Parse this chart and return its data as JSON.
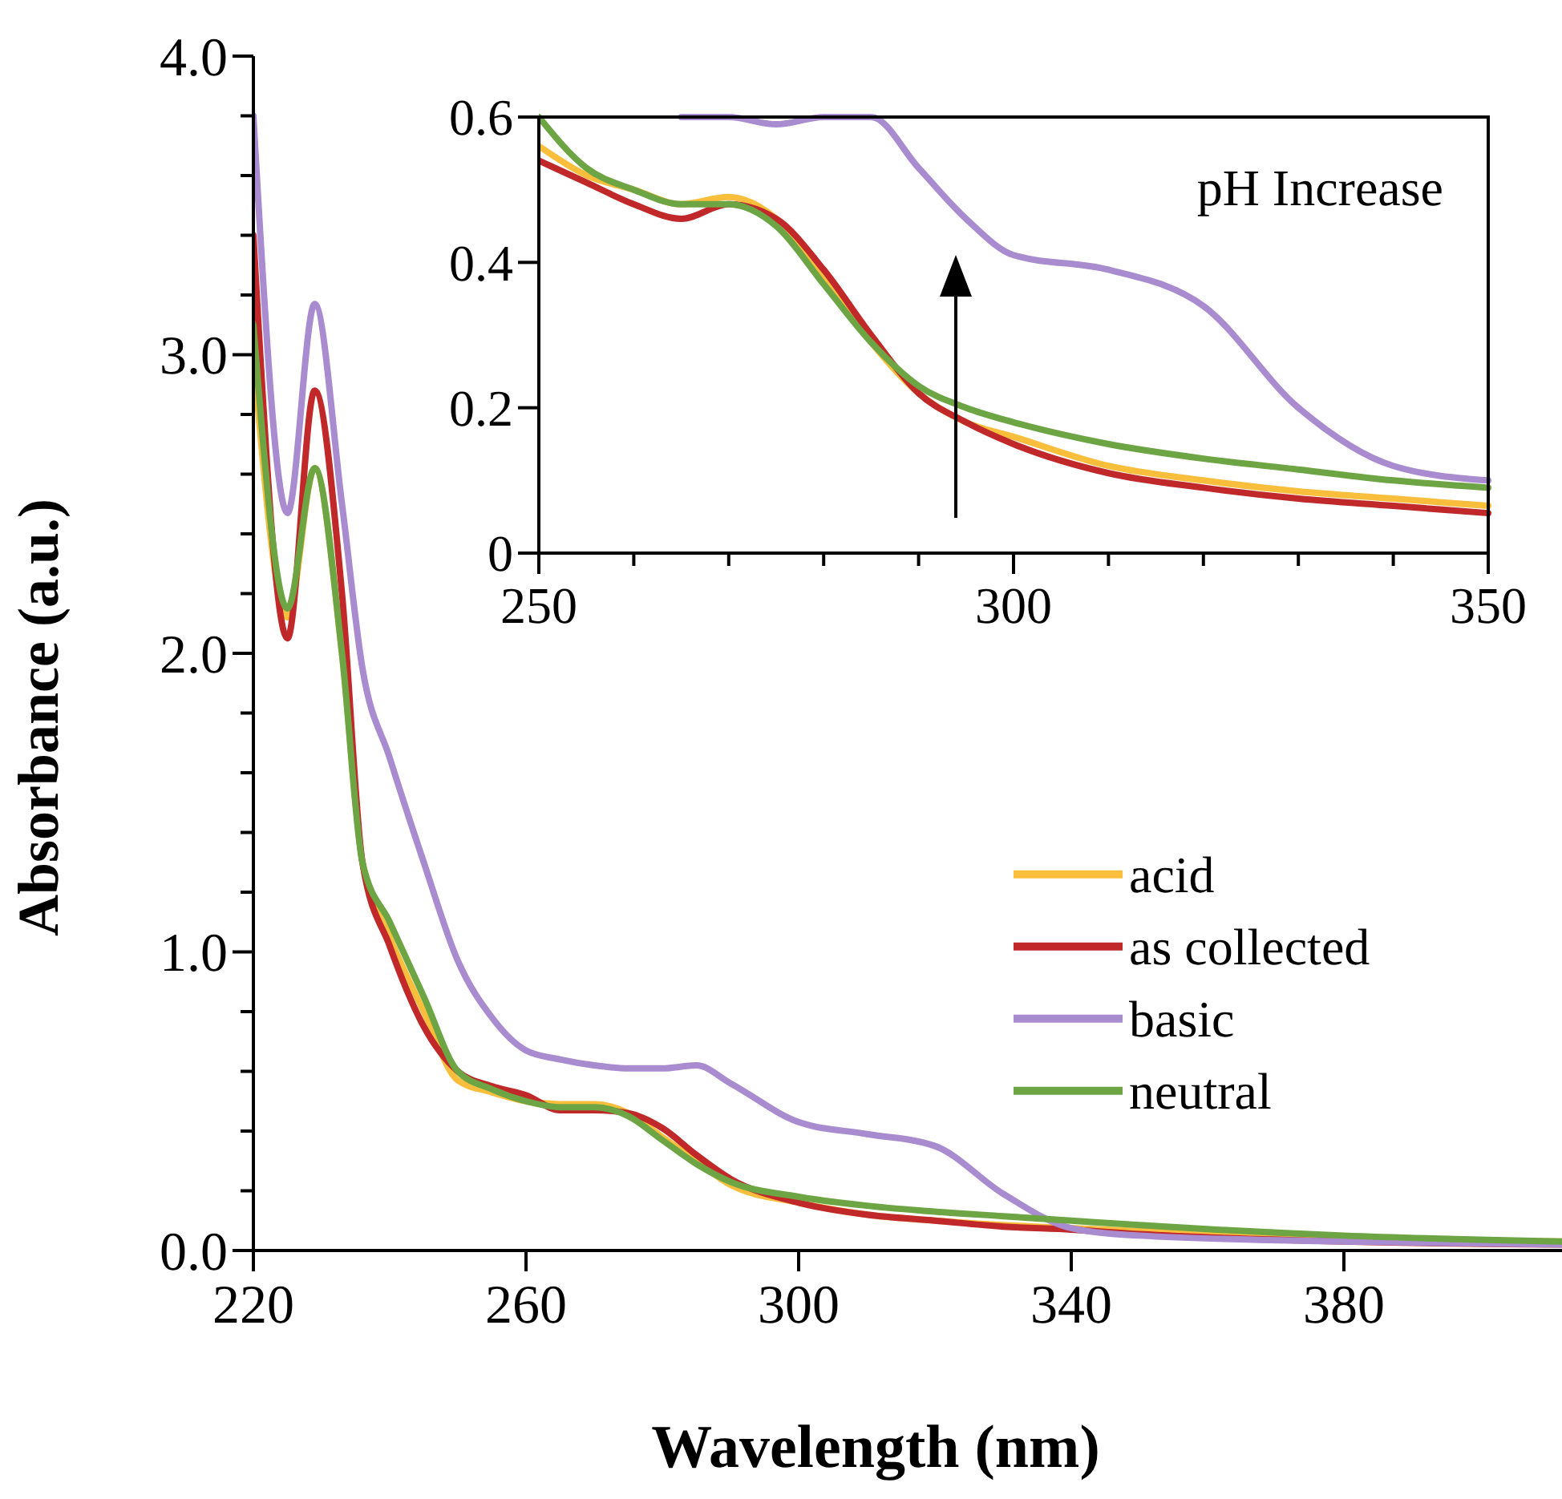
{
  "chart_data": [
    {
      "type": "line",
      "xlabel": "Wavelength (nm)",
      "ylabel": "Absorbance (a.u.)",
      "legend": "right",
      "grid": false,
      "marker": "none",
      "line_style": "solid",
      "x": [
        220,
        225,
        229,
        233,
        236,
        240,
        245,
        250,
        255,
        260,
        265,
        270,
        275,
        280,
        285,
        290,
        300,
        310,
        320,
        330,
        340,
        350,
        380,
        412
      ],
      "xlim": [
        220,
        412
      ],
      "xticks": [
        220,
        260,
        300,
        340,
        380
      ],
      "ylim": [
        0,
        4
      ],
      "yticks": [
        {
          "value": 0,
          "label": "0.0"
        },
        {
          "value": 0.2,
          "label": null
        },
        {
          "value": 0.4,
          "label": null
        },
        {
          "value": 0.6,
          "label": null
        },
        {
          "value": 0.8,
          "label": null
        },
        {
          "value": 1,
          "label": "1.0"
        },
        {
          "value": 1.2,
          "label": null
        },
        {
          "value": 1.4,
          "label": null
        },
        {
          "value": 1.6,
          "label": null
        },
        {
          "value": 1.8,
          "label": null
        },
        {
          "value": 2,
          "label": "2.0"
        },
        {
          "value": 2.2,
          "label": null
        },
        {
          "value": 2.4,
          "label": null
        },
        {
          "value": 2.6,
          "label": null
        },
        {
          "value": 2.8,
          "label": null
        },
        {
          "value": 3,
          "label": "3.0"
        },
        {
          "value": 3.2,
          "label": null
        },
        {
          "value": 3.4,
          "label": null
        },
        {
          "value": 3.6,
          "label": null
        },
        {
          "value": 3.8,
          "label": null
        },
        {
          "value": 4,
          "label": "4.0"
        }
      ],
      "series": [
        {
          "name": "acid",
          "color": "#f9be3c",
          "values": [
            3.0,
            2.12,
            2.62,
            2.0,
            1.3,
            1.05,
            0.8,
            0.57,
            0.53,
            0.5,
            0.49,
            0.49,
            0.46,
            0.38,
            0.3,
            0.22,
            0.16,
            0.12,
            0.1,
            0.085,
            0.075,
            0.065,
            0.04,
            0.03
          ]
        },
        {
          "name": "as collected",
          "color": "#c0282a",
          "values": [
            3.4,
            2.05,
            2.88,
            2.2,
            1.3,
            1.02,
            0.75,
            0.6,
            0.55,
            0.52,
            0.47,
            0.47,
            0.46,
            0.41,
            0.32,
            0.24,
            0.16,
            0.12,
            0.1,
            0.08,
            0.07,
            0.055,
            0.03,
            0.02
          ]
        },
        {
          "name": "basic",
          "color": "#a98bd0",
          "values": [
            3.8,
            2.47,
            3.17,
            2.5,
            1.95,
            1.65,
            1.3,
            0.97,
            0.78,
            0.67,
            0.64,
            0.62,
            0.61,
            0.61,
            0.62,
            0.56,
            0.43,
            0.39,
            0.35,
            0.19,
            0.075,
            0.05,
            0.03,
            0.02
          ]
        },
        {
          "name": "neutral",
          "color": "#6da544",
          "values": [
            3.1,
            2.15,
            2.62,
            2.0,
            1.3,
            1.1,
            0.85,
            0.6,
            0.54,
            0.5,
            0.48,
            0.48,
            0.45,
            0.37,
            0.29,
            0.23,
            0.18,
            0.15,
            0.13,
            0.115,
            0.1,
            0.085,
            0.05,
            0.03
          ]
        }
      ]
    },
    {
      "type": "line",
      "grid": false,
      "marker": "none",
      "line_style": "solid",
      "annotations": [
        "pH Increase"
      ],
      "x": [
        250,
        255,
        260,
        265,
        270,
        275,
        280,
        285,
        290,
        295,
        300,
        310,
        320,
        330,
        340,
        350
      ],
      "xlim": [
        250,
        350
      ],
      "xticks": [
        250,
        {
          "value": 260,
          "label": null
        },
        {
          "value": 270,
          "label": null
        },
        {
          "value": 280,
          "label": null
        },
        {
          "value": 290,
          "label": null
        },
        300,
        {
          "value": 310,
          "label": null
        },
        {
          "value": 320,
          "label": null
        },
        {
          "value": 330,
          "label": null
        },
        {
          "value": 340,
          "label": null
        },
        350
      ],
      "ylim": [
        0,
        0.6
      ],
      "yticks": [
        0,
        0.2,
        0.4,
        0.6
      ],
      "series": [
        {
          "color": "#f9be3c",
          "values": [
            0.56,
            0.52,
            0.5,
            0.48,
            0.49,
            0.46,
            0.38,
            0.29,
            0.22,
            0.18,
            0.16,
            0.12,
            0.1,
            0.085,
            0.075,
            0.065
          ]
        },
        {
          "color": "#c0282a",
          "values": [
            0.54,
            0.51,
            0.48,
            0.46,
            0.48,
            0.46,
            0.39,
            0.3,
            0.22,
            0.18,
            0.15,
            0.11,
            0.09,
            0.075,
            0.065,
            0.055
          ]
        },
        {
          "color": "#a98bd0",
          "values": [
            null,
            null,
            null,
            0.6,
            0.6,
            0.59,
            0.6,
            0.6,
            0.53,
            0.46,
            0.41,
            0.39,
            0.34,
            0.2,
            0.12,
            0.1
          ]
        },
        {
          "color": "#6da544",
          "values": [
            0.6,
            0.53,
            0.5,
            0.48,
            0.48,
            0.45,
            0.37,
            0.29,
            0.23,
            0.2,
            0.18,
            0.15,
            0.13,
            0.115,
            0.1,
            0.09
          ]
        }
      ]
    }
  ]
}
